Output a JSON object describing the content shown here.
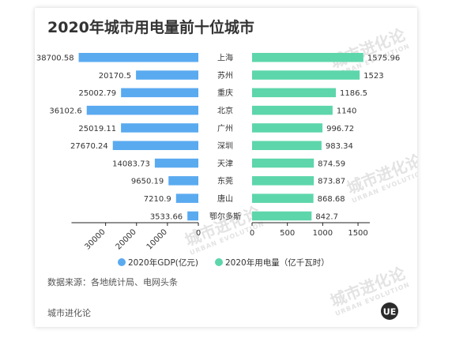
{
  "page": {
    "source_note": "数据来源：各地统计局、电网头条",
    "footer_brand": "城市进化论",
    "watermark_cn": "城市进化论",
    "watermark_en": "URBAN EVOLUTION",
    "logo_text": "UE"
  },
  "chart_data": {
    "type": "bar",
    "title": "2020年城市用电量前十位城市",
    "categories": [
      "上海",
      "苏州",
      "重庆",
      "北京",
      "广州",
      "深圳",
      "天津",
      "东莞",
      "唐山",
      "鄂尔多斯"
    ],
    "series": [
      {
        "name": "2020年GDP(亿元)",
        "color": "#5aaaf0",
        "values": [
          38700.58,
          20170.5,
          25002.79,
          36102.6,
          25019.11,
          27670.24,
          14083.73,
          9650.19,
          7210.9,
          3533.66
        ],
        "labels": [
          "38700.58",
          "20170.5",
          "25002.79",
          "36102.6",
          "25019.11",
          "27670.24",
          "14083.73",
          "9650.19",
          "7210.9",
          "3533.66"
        ],
        "axis_max": 40000,
        "ticks": [
          0,
          10000,
          20000,
          30000
        ],
        "direction": "left"
      },
      {
        "name": "2020年用电量（亿千瓦时）",
        "color": "#5dd6ab",
        "values": [
          1575.96,
          1523,
          1186.5,
          1140,
          996.72,
          983.34,
          874.59,
          873.87,
          868.68,
          842.7
        ],
        "labels": [
          "1575.96",
          "1523",
          "1186.5",
          "1140",
          "996.72",
          "983.34",
          "874.59",
          "873.87",
          "868.68",
          "842.7"
        ],
        "axis_max": 1600,
        "ticks": [
          0,
          500,
          1000,
          1500
        ],
        "direction": "right"
      }
    ],
    "legend_position": "bottom",
    "grid": false
  }
}
